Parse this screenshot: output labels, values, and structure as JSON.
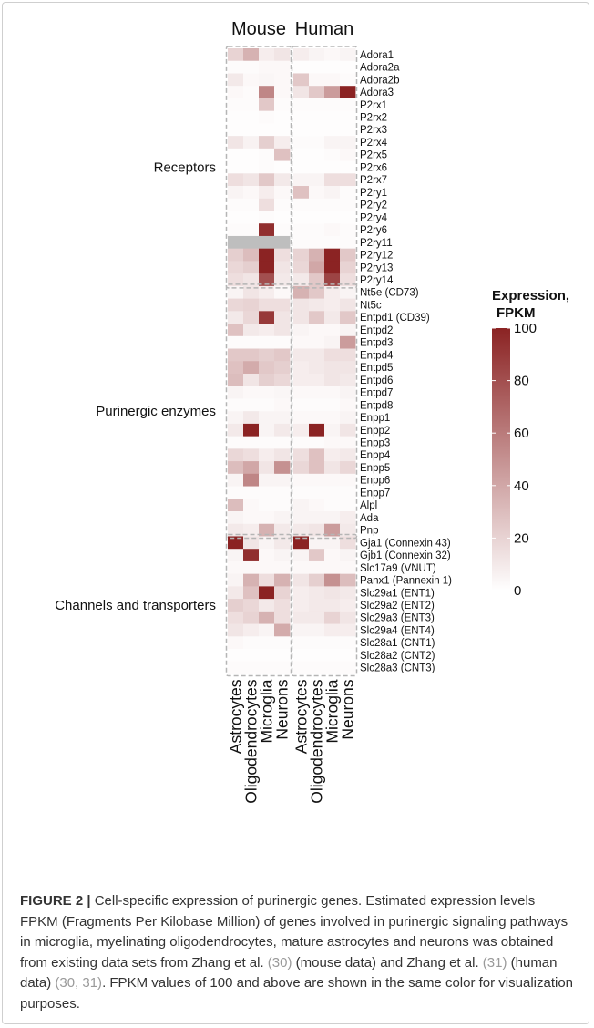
{
  "chart_data": {
    "type": "heatmap",
    "species": [
      "Mouse",
      "Human"
    ],
    "cell_types": [
      "Astrocytes",
      "Oligodendrocytes",
      "Microglia",
      "Neurons"
    ],
    "groups": [
      {
        "label": "Receptors",
        "genes": [
          "Adora1",
          "Adora2a",
          "Adora2b",
          "Adora3",
          "P2rx1",
          "P2rx2",
          "P2rx3",
          "P2rx4",
          "P2rx5",
          "P2rx6",
          "P2rx7",
          "P2ry1",
          "P2ry2",
          "P2ry4",
          "P2ry6",
          "P2ry11",
          "P2ry12",
          "P2ry13",
          "P2ry14"
        ]
      },
      {
        "label": "Purinergic enzymes",
        "genes": [
          "Nt5e (CD73)",
          "Nt5c",
          "Entpd1 (CD39)",
          "Entpd2",
          "Entpd3",
          "Entpd4",
          "Entpd5",
          "Entpd6",
          "Entpd7",
          "Entpd8",
          "Enpp1",
          "Enpp2",
          "Enpp3",
          "Enpp4",
          "Enpp5",
          "Enpp6",
          "Enpp7",
          "Alpl",
          "Ada",
          "Pnp"
        ]
      },
      {
        "label": "Channels and transporters",
        "genes": [
          "Gja1 (Connexin 43)",
          "Gjb1 (Connexin 32)",
          "Slc17a9 (VNUT)",
          "Panx1 (Pannexin 1)",
          "Slc29a1 (ENT1)",
          "Slc29a2 (ENT2)",
          "Slc29a3 (ENT3)",
          "Slc29a4 (ENT4)",
          "Slc28a1 (CNT1)",
          "Slc28a2 (CNT2)",
          "Slc28a3 (CNT3)"
        ]
      }
    ],
    "values": {
      "Mouse": [
        [
          20,
          35,
          8,
          12
        ],
        [
          2,
          2,
          3,
          3
        ],
        [
          10,
          3,
          4,
          3
        ],
        [
          3,
          2,
          55,
          3
        ],
        [
          2,
          2,
          25,
          2
        ],
        [
          1,
          1,
          2,
          1
        ],
        [
          1,
          1,
          1,
          1
        ],
        [
          12,
          6,
          22,
          8
        ],
        [
          1,
          1,
          2,
          28
        ],
        [
          1,
          1,
          2,
          1
        ],
        [
          15,
          12,
          25,
          10
        ],
        [
          5,
          3,
          8,
          3
        ],
        [
          2,
          2,
          15,
          2
        ],
        [
          1,
          1,
          2,
          1
        ],
        [
          2,
          2,
          95,
          2
        ],
        [
          null,
          null,
          null,
          null
        ],
        [
          22,
          30,
          100,
          15
        ],
        [
          18,
          22,
          100,
          12
        ],
        [
          15,
          12,
          80,
          10
        ],
        [
          5,
          12,
          8,
          3
        ],
        [
          18,
          20,
          15,
          15
        ],
        [
          10,
          18,
          90,
          12
        ],
        [
          28,
          10,
          8,
          12
        ],
        [
          2,
          2,
          2,
          2
        ],
        [
          25,
          25,
          22,
          25
        ],
        [
          28,
          38,
          25,
          22
        ],
        [
          30,
          12,
          22,
          18
        ],
        [
          5,
          3,
          3,
          4
        ],
        [
          2,
          2,
          2,
          3
        ],
        [
          5,
          10,
          5,
          5
        ],
        [
          10,
          100,
          5,
          10
        ],
        [
          2,
          2,
          2,
          2
        ],
        [
          18,
          15,
          8,
          12
        ],
        [
          30,
          40,
          12,
          50
        ],
        [
          5,
          55,
          5,
          5
        ],
        [
          2,
          2,
          2,
          2
        ],
        [
          30,
          3,
          2,
          2
        ],
        [
          5,
          3,
          3,
          5
        ],
        [
          10,
          8,
          35,
          10
        ],
        [
          100,
          12,
          5,
          10
        ],
        [
          5,
          95,
          3,
          5
        ],
        [
          3,
          3,
          3,
          3
        ],
        [
          5,
          35,
          15,
          35
        ],
        [
          10,
          28,
          100,
          20
        ],
        [
          22,
          18,
          10,
          15
        ],
        [
          15,
          20,
          35,
          15
        ],
        [
          12,
          8,
          5,
          38
        ],
        [
          3,
          2,
          2,
          2
        ],
        [
          1,
          1,
          1,
          1
        ],
        [
          2,
          2,
          2,
          2
        ]
      ],
      "Human": [
        [
          8,
          5,
          3,
          5
        ],
        [
          1,
          1,
          1,
          1
        ],
        [
          25,
          3,
          3,
          2
        ],
        [
          12,
          25,
          45,
          100
        ],
        [
          2,
          2,
          2,
          2
        ],
        [
          1,
          1,
          1,
          1
        ],
        [
          1,
          1,
          1,
          1
        ],
        [
          2,
          2,
          5,
          5
        ],
        [
          1,
          1,
          2,
          3
        ],
        [
          1,
          1,
          1,
          1
        ],
        [
          5,
          5,
          15,
          15
        ],
        [
          28,
          3,
          5,
          2
        ],
        [
          2,
          2,
          2,
          2
        ],
        [
          1,
          1,
          1,
          1
        ],
        [
          2,
          2,
          3,
          2
        ],
        [
          2,
          2,
          2,
          2
        ],
        [
          20,
          35,
          100,
          25
        ],
        [
          18,
          40,
          100,
          20
        ],
        [
          10,
          25,
          85,
          15
        ],
        [
          35,
          25,
          8,
          5
        ],
        [
          12,
          10,
          8,
          12
        ],
        [
          12,
          25,
          10,
          25
        ],
        [
          5,
          3,
          3,
          5
        ],
        [
          3,
          3,
          5,
          45
        ],
        [
          10,
          10,
          15,
          15
        ],
        [
          8,
          10,
          12,
          12
        ],
        [
          8,
          8,
          12,
          10
        ],
        [
          3,
          3,
          3,
          5
        ],
        [
          2,
          2,
          2,
          3
        ],
        [
          3,
          3,
          3,
          5
        ],
        [
          8,
          100,
          5,
          12
        ],
        [
          2,
          2,
          3,
          3
        ],
        [
          15,
          28,
          8,
          10
        ],
        [
          18,
          28,
          12,
          18
        ],
        [
          3,
          3,
          3,
          3
        ],
        [
          2,
          2,
          2,
          2
        ],
        [
          5,
          3,
          2,
          2
        ],
        [
          5,
          5,
          5,
          8
        ],
        [
          10,
          12,
          45,
          10
        ],
        [
          100,
          5,
          5,
          15
        ],
        [
          5,
          25,
          3,
          5
        ],
        [
          3,
          3,
          3,
          3
        ],
        [
          12,
          22,
          50,
          30
        ],
        [
          8,
          10,
          12,
          10
        ],
        [
          8,
          10,
          10,
          8
        ],
        [
          10,
          10,
          20,
          12
        ],
        [
          5,
          5,
          8,
          8
        ],
        [
          2,
          2,
          2,
          2
        ],
        [
          1,
          1,
          1,
          1
        ],
        [
          2,
          2,
          2,
          2
        ]
      ]
    },
    "colorbar": {
      "title_line1": "Expression,",
      "title_line2": "FPKM",
      "ticks": [
        0,
        20,
        40,
        60,
        80,
        100
      ],
      "range": [
        0,
        100
      ],
      "low_color": "#ffffff",
      "high_color": "#8b2323",
      "na_color": "#bebebe"
    }
  },
  "caption": {
    "label": "FIGURE 2 |",
    "text_parts": [
      {
        "t": " Cell-specific expression of purinergic genes. Estimated expression levels FPKM (Fragments Per Kilobase Million) of genes involved in purinergic signaling pathways in microglia, myelinating oligodendrocytes, mature astrocytes and neurons was obtained from existing data sets from Zhang et al. ",
        "ref": false
      },
      {
        "t": "(30)",
        "ref": true
      },
      {
        "t": " (mouse data) and Zhang et al. ",
        "ref": false
      },
      {
        "t": "(31)",
        "ref": true
      },
      {
        "t": " (human data) ",
        "ref": false
      },
      {
        "t": "(30, 31)",
        "ref": true
      },
      {
        "t": ". FPKM values of 100 and above are shown in the same color for visualization purposes.",
        "ref": false
      }
    ]
  }
}
